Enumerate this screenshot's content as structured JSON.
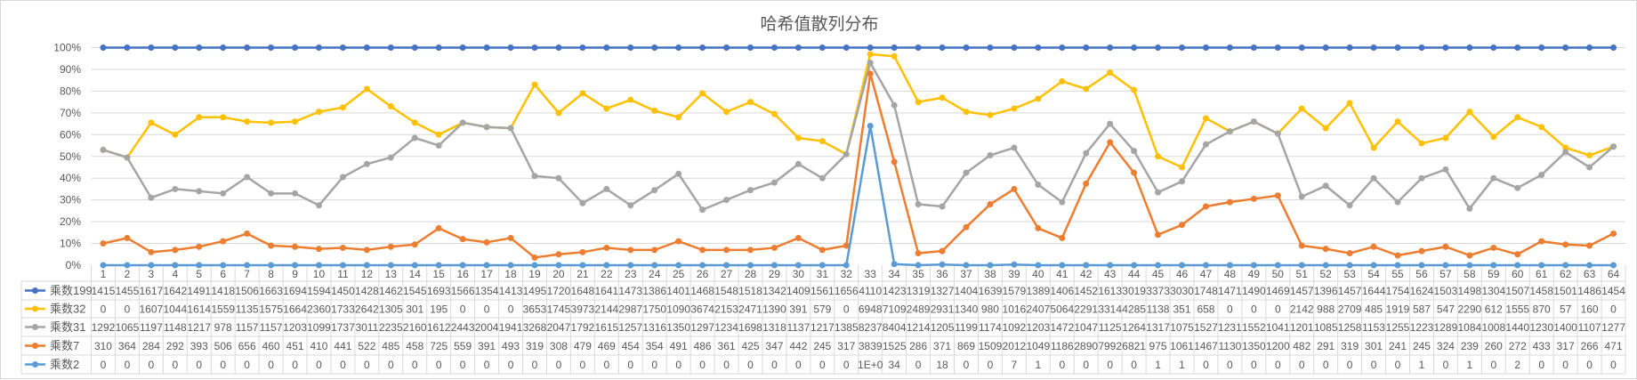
{
  "chart_data": {
    "type": "line",
    "title": "哈希值散列分布",
    "ylim": [
      0,
      1
    ],
    "yticks": [
      "0%",
      "10%",
      "20%",
      "30%",
      "40%",
      "50%",
      "60%",
      "70%",
      "80%",
      "90%",
      "100%"
    ],
    "grid": true,
    "legend_placement": "data-table",
    "categories": [
      "1",
      "2",
      "3",
      "4",
      "5",
      "6",
      "7",
      "8",
      "9",
      "10",
      "11",
      "12",
      "13",
      "14",
      "15",
      "16",
      "17",
      "18",
      "19",
      "20",
      "21",
      "22",
      "23",
      "24",
      "25",
      "26",
      "27",
      "28",
      "29",
      "30",
      "31",
      "32",
      "33",
      "34",
      "35",
      "36",
      "37",
      "38",
      "39",
      "40",
      "41",
      "42",
      "43",
      "44",
      "45",
      "46",
      "47",
      "48",
      "49",
      "50",
      "51",
      "52",
      "53",
      "54",
      "55",
      "56",
      "57",
      "58",
      "59",
      "60",
      "61",
      "62",
      "63",
      "64"
    ],
    "series": [
      {
        "name": "乘数199",
        "color": "#4472C4",
        "percent": [
          100,
          100,
          100,
          100,
          100,
          100,
          100,
          100,
          100,
          100,
          100,
          100,
          100,
          100,
          100,
          100,
          100,
          100,
          100,
          100,
          100,
          100,
          100,
          100,
          100,
          100,
          100,
          100,
          100,
          100,
          100,
          100,
          100,
          100,
          100,
          100,
          100,
          100,
          100,
          100,
          100,
          100,
          100,
          100,
          100,
          100,
          100,
          100,
          100,
          100,
          100,
          100,
          100,
          100,
          100,
          100,
          100,
          100,
          100,
          100,
          100,
          100,
          100,
          100
        ],
        "table": [
          "1415",
          "1455",
          "1617",
          "1642",
          "1491",
          "1418",
          "1506",
          "1663",
          "1694",
          "1594",
          "1450",
          "1428",
          "1462",
          "1545",
          "1693",
          "1566",
          "1354",
          "1413",
          "1495",
          "1720",
          "1648",
          "1641",
          "1473",
          "1386",
          "1401",
          "1468",
          "1548",
          "1518",
          "1342",
          "1409",
          "1561",
          "1656",
          "4110",
          "1423",
          "1319",
          "1327",
          "1404",
          "1639",
          "1579",
          "1389",
          "1406",
          "1452",
          "1613",
          "3019",
          "3373",
          "3030",
          "1748",
          "1471",
          "1490",
          "1469",
          "1457",
          "1396",
          "1457",
          "1644",
          "1754",
          "1624",
          "1503",
          "1498",
          "1304",
          "1507",
          "1458",
          "1501",
          "1486",
          "1454"
        ]
      },
      {
        "name": "乘数32",
        "color": "#FFC000",
        "percent": [
          53,
          49.5,
          65.5,
          60,
          68,
          68,
          66,
          65.5,
          66,
          70.5,
          72.5,
          81,
          73,
          65.5,
          60,
          65.5,
          63.5,
          63,
          83,
          70,
          79,
          72,
          76,
          71,
          68,
          79,
          70.5,
          75,
          69.5,
          58.5,
          57,
          51,
          97,
          96,
          75,
          77,
          70.5,
          69,
          72,
          76.5,
          84.5,
          81,
          88.5,
          80.5,
          50,
          45,
          67.5,
          61.5,
          66,
          60.5,
          72,
          63,
          74.5,
          54,
          66,
          56,
          58.5,
          70.5,
          59,
          68,
          63.5,
          54,
          50.5,
          54.5
        ],
        "table": [
          "0",
          "0",
          "1607",
          "1044",
          "1614",
          "1559",
          "1135",
          "1575",
          "1664",
          "2360",
          "1733",
          "2642",
          "1305",
          "301",
          "195",
          "0",
          "0",
          "0",
          "3653",
          "1745",
          "3973",
          "2144",
          "2987",
          "1750",
          "1090",
          "3674",
          "2153",
          "2471",
          "1390",
          "391",
          "579",
          "0",
          "6948",
          "7109",
          "2489",
          "2931",
          "1340",
          "980",
          "1016",
          "2407",
          "5064",
          "2291",
          "3314",
          "4285",
          "1138",
          "351",
          "658",
          "0",
          "0",
          "0",
          "2142",
          "988",
          "2709",
          "485",
          "1919",
          "587",
          "547",
          "2290",
          "612",
          "1555",
          "870",
          "57",
          "160",
          "0"
        ]
      },
      {
        "name": "乘数31",
        "color": "#A5A5A5",
        "percent": [
          53,
          49.5,
          31,
          35,
          34,
          33,
          40.5,
          33,
          33,
          27.5,
          40.5,
          46.5,
          49.5,
          58.5,
          55,
          65.5,
          63.5,
          63,
          41,
          40,
          28.5,
          35,
          27.5,
          34.5,
          42,
          25.5,
          30,
          34.5,
          38,
          46.5,
          40,
          51,
          93,
          73.5,
          28,
          27,
          42.5,
          50.5,
          54,
          37,
          29,
          51.5,
          65,
          52.5,
          33.5,
          38.5,
          55.5,
          61.5,
          66,
          60.5,
          31.5,
          36.5,
          27.5,
          40,
          29,
          40,
          44,
          26,
          40,
          35.5,
          41.5,
          52,
          45,
          54.5
        ],
        "table": [
          "1292",
          "1065",
          "1197",
          "1148",
          "1217",
          "978",
          "1157",
          "1157",
          "1203",
          "1099",
          "1737",
          "3011",
          "2235",
          "2160",
          "1612",
          "2443",
          "2004",
          "1941",
          "3268",
          "2047",
          "1792",
          "1615",
          "1257",
          "1316",
          "1350",
          "1297",
          "1234",
          "1698",
          "1318",
          "1137",
          "1217",
          "1385",
          "8237",
          "8404",
          "1214",
          "1205",
          "1199",
          "1174",
          "1092",
          "1203",
          "1472",
          "1047",
          "1125",
          "1264",
          "1317",
          "1075",
          "1527",
          "1231",
          "1552",
          "1041",
          "1201",
          "1085",
          "1258",
          "1153",
          "1255",
          "1223",
          "1289",
          "1084",
          "1008",
          "1440",
          "1230",
          "1400",
          "1107",
          "1277"
        ]
      },
      {
        "name": "乘数7",
        "color": "#ED7D31",
        "percent": [
          10,
          12.5,
          6,
          7,
          8.5,
          11,
          14.5,
          9,
          8.5,
          7.5,
          8,
          7,
          8.5,
          9.5,
          17,
          12,
          10.5,
          12.5,
          3.5,
          5,
          6,
          8,
          7,
          7,
          11,
          7,
          7,
          7,
          8,
          12.5,
          7,
          9,
          88,
          47.5,
          5.5,
          6.5,
          17.5,
          28,
          35,
          17,
          12.5,
          37.5,
          56.5,
          42.5,
          14,
          18.5,
          27,
          29,
          30.5,
          32,
          9,
          7.5,
          5.5,
          8.5,
          4.5,
          6.5,
          8.5,
          4.5,
          8,
          5,
          11,
          9.5,
          9,
          14.5
        ],
        "table": [
          "310",
          "364",
          "284",
          "292",
          "393",
          "506",
          "656",
          "460",
          "451",
          "410",
          "441",
          "522",
          "485",
          "458",
          "725",
          "559",
          "391",
          "493",
          "319",
          "308",
          "479",
          "469",
          "454",
          "354",
          "491",
          "486",
          "361",
          "425",
          "347",
          "442",
          "245",
          "317",
          "3839",
          "1525",
          "286",
          "371",
          "869",
          "1509",
          "2012",
          "1049",
          "1186",
          "2890",
          "7992",
          "6821",
          "975",
          "1061",
          "1467",
          "1130",
          "1350",
          "1200",
          "482",
          "291",
          "319",
          "301",
          "241",
          "245",
          "324",
          "239",
          "260",
          "272",
          "433",
          "317",
          "266",
          "471"
        ]
      },
      {
        "name": "乘数2",
        "color": "#5B9BD5",
        "percent": [
          0,
          0,
          0,
          0,
          0,
          0,
          0,
          0,
          0,
          0,
          0,
          0,
          0,
          0,
          0,
          0,
          0,
          0,
          0,
          0,
          0,
          0,
          0,
          0,
          0,
          0,
          0,
          0,
          0,
          0,
          0,
          0,
          64,
          0.5,
          0,
          0.3,
          0,
          0,
          0.3,
          0,
          0,
          0,
          0,
          0,
          0,
          0,
          0,
          0,
          0,
          0,
          0,
          0,
          0,
          0,
          0,
          0,
          0,
          0,
          0,
          0,
          0,
          0,
          0,
          0
        ],
        "table": [
          "0",
          "0",
          "0",
          "0",
          "0",
          "0",
          "0",
          "0",
          "0",
          "0",
          "0",
          "0",
          "0",
          "0",
          "0",
          "0",
          "0",
          "0",
          "0",
          "0",
          "0",
          "0",
          "0",
          "0",
          "0",
          "0",
          "0",
          "0",
          "0",
          "0",
          "0",
          "0",
          "1E+0",
          "34",
          "0",
          "18",
          "0",
          "0",
          "7",
          "1",
          "0",
          "0",
          "0",
          "0",
          "1",
          "1",
          "0",
          "0",
          "0",
          "0",
          "0",
          "0",
          "0",
          "0",
          "0",
          "1",
          "0",
          "1",
          "0",
          "2",
          "0",
          "0",
          "0",
          "0"
        ]
      }
    ]
  }
}
